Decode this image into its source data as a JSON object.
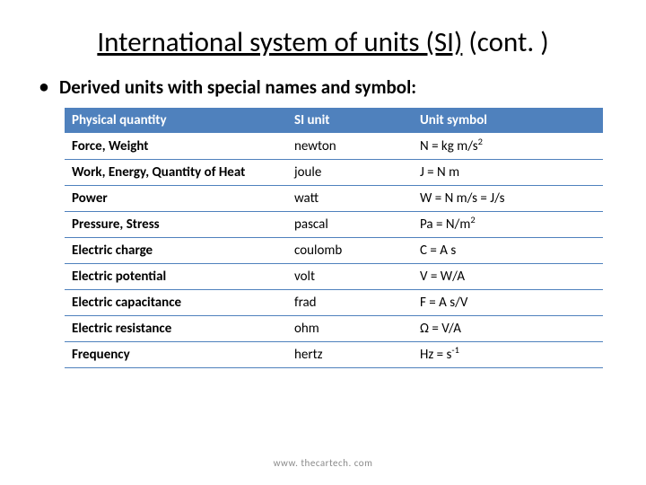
{
  "title": {
    "underlined": "International system of units (SI)",
    "rest": " (cont. )"
  },
  "bullet": "Derived units with special names and symbol:",
  "table": {
    "header_bg": "#4f81bd",
    "header_fg": "#ffffff",
    "row_border": "#4f81bd",
    "columns": [
      "Physical quantity",
      "SI unit",
      "Unit symbol"
    ],
    "rows": [
      {
        "qty": "Force, Weight",
        "unit": "newton",
        "symbol_html": "N = kg m/s<sup>2</sup>"
      },
      {
        "qty": "Work, Energy, Quantity of Heat",
        "unit": "joule",
        "symbol_html": "J = N m"
      },
      {
        "qty": "Power",
        "unit": "watt",
        "symbol_html": "W = N m/s = J/s"
      },
      {
        "qty": "Pressure, Stress",
        "unit": "pascal",
        "symbol_html": "Pa = N/m<sup>2</sup>"
      },
      {
        "qty": "Electric charge",
        "unit": "coulomb",
        "symbol_html": "C = A s"
      },
      {
        "qty": "Electric potential",
        "unit": "volt",
        "symbol_html": "V = W/A"
      },
      {
        "qty": "Electric capacitance",
        "unit": "frad",
        "symbol_html": "F = A s/V"
      },
      {
        "qty": "Electric resistance",
        "unit": "ohm",
        "symbol_html": "Ω = V/A"
      },
      {
        "qty": "Frequency",
        "unit": "hertz",
        "symbol_html": "Hz = s<sup>-1</sup>"
      }
    ]
  },
  "footer": "www. thecartech. com"
}
